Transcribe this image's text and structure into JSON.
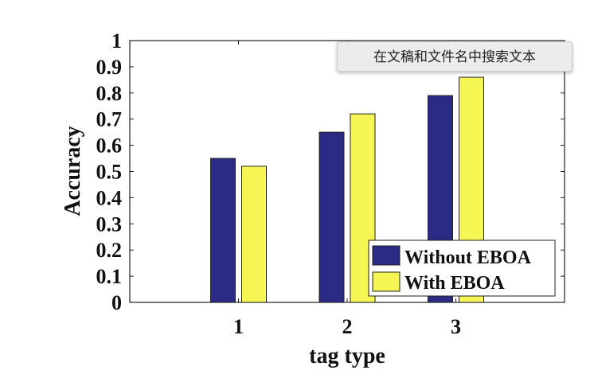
{
  "chart_data": {
    "type": "bar",
    "title": "",
    "xlabel": "tag type",
    "ylabel": "Accuracy",
    "categories": [
      "1",
      "2",
      "3"
    ],
    "series": [
      {
        "name": "Without EBOA",
        "color": "#2b2a84",
        "values": [
          0.55,
          0.65,
          0.79
        ]
      },
      {
        "name": "With EBOA",
        "color": "#f5f553",
        "values": [
          0.52,
          0.72,
          0.86
        ]
      }
    ],
    "ylim": [
      0,
      1
    ],
    "yticks": [
      "0",
      "0.1",
      "0.2",
      "0.3",
      "0.4",
      "0.5",
      "0.6",
      "0.7",
      "0.8",
      "0.9",
      "1"
    ],
    "xlim": [
      0,
      4
    ],
    "grid": false,
    "legend_position": "bottom-right"
  },
  "tooltip": {
    "text": "在文稿和文件名中搜索文本"
  }
}
